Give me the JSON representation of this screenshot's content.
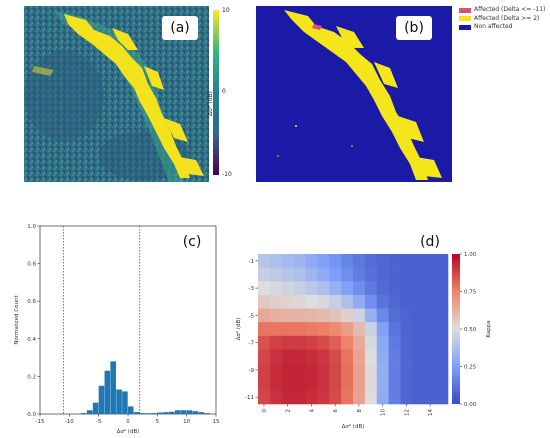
{
  "panels": {
    "a": {
      "tag": "(a)",
      "colorbar": {
        "max_label": "10",
        "mid_label": "0",
        "min_label": "-10",
        "label": "Δσ⁰ (dB)",
        "colors": [
          "#440154",
          "#31688e",
          "#26828e",
          "#35b779",
          "#fde725"
        ]
      }
    },
    "b": {
      "tag": "(b)",
      "legend": [
        {
          "label": "Affected (Delta <= -11)",
          "color": "#d9536f"
        },
        {
          "label": "Affected (Delta >= 2)",
          "color": "#f5e51b"
        },
        {
          "label": "Non affected",
          "color": "#1a1aa6"
        }
      ]
    },
    "c": {
      "tag": "(c)"
    },
    "d": {
      "tag": "(d)"
    }
  },
  "chart_data": [
    {
      "panel": "c",
      "type": "bar",
      "subtype": "histogram",
      "title": "",
      "xlabel": "Δσ⁰ (dB)",
      "ylabel": "Normalized Count",
      "xlim": [
        -15,
        15
      ],
      "ylim": [
        0,
        1.0
      ],
      "xticks": [
        -15,
        -10,
        -5,
        0,
        5,
        10,
        15
      ],
      "yticks": [
        0.0,
        0.2,
        0.4,
        0.6,
        0.8,
        1.0
      ],
      "ytick_labels": [
        "0.0",
        "0.2",
        "0.4",
        "0.6",
        "0.8",
        "1.0"
      ],
      "bar_color": "#1f77b4",
      "threshold_lines": [
        -11,
        2
      ],
      "bins": [
        {
          "x0": -8,
          "x1": -7,
          "value": 0.005
        },
        {
          "x0": -7,
          "x1": -6,
          "value": 0.02
        },
        {
          "x0": -6,
          "x1": -5,
          "value": 0.06
        },
        {
          "x0": -5,
          "x1": -4,
          "value": 0.15
        },
        {
          "x0": -4,
          "x1": -3,
          "value": 0.23
        },
        {
          "x0": -3,
          "x1": -2,
          "value": 0.28
        },
        {
          "x0": -2,
          "x1": -1,
          "value": 0.13
        },
        {
          "x0": -1,
          "x1": 0,
          "value": 0.12
        },
        {
          "x0": 0,
          "x1": 1,
          "value": 0.04
        },
        {
          "x0": 1,
          "x1": 2,
          "value": 0.01
        },
        {
          "x0": 2,
          "x1": 3,
          "value": 0.005
        },
        {
          "x0": 3,
          "x1": 4,
          "value": 0.004
        },
        {
          "x0": 4,
          "x1": 5,
          "value": 0.005
        },
        {
          "x0": 5,
          "x1": 6,
          "value": 0.008
        },
        {
          "x0": 6,
          "x1": 7,
          "value": 0.01
        },
        {
          "x0": 7,
          "x1": 8,
          "value": 0.012
        },
        {
          "x0": 8,
          "x1": 9,
          "value": 0.02
        },
        {
          "x0": 9,
          "x1": 10,
          "value": 0.02
        },
        {
          "x0": 10,
          "x1": 11,
          "value": 0.02
        },
        {
          "x0": 11,
          "x1": 12,
          "value": 0.015
        },
        {
          "x0": 12,
          "x1": 13,
          "value": 0.01
        },
        {
          "x0": 13,
          "x1": 14,
          "value": 0.005
        }
      ]
    },
    {
      "panel": "d",
      "type": "heatmap",
      "title": "",
      "xlabel": "Δσ⁰ (dB)",
      "ylabel": "Δσ⁰ (dB)",
      "colorbar_label": "Kappa",
      "colorbar_ticks": [
        "1.00",
        "0.75",
        "0.50",
        "0.25",
        "0.00"
      ],
      "vmin": 0.0,
      "vmax": 1.0,
      "x": [
        0,
        1,
        2,
        3,
        4,
        5,
        6,
        7,
        8,
        9,
        10,
        11,
        12,
        13,
        14,
        15
      ],
      "y": [
        -1,
        -2,
        -3,
        -4,
        -5,
        -6,
        -7,
        -8,
        -9,
        -10,
        -11
      ],
      "xtick_labels": [
        "0",
        "2",
        "4",
        "6",
        "8",
        "10",
        "12",
        "14"
      ],
      "ytick_labels": [
        "-1",
        "-3",
        "-5",
        "-7",
        "-9",
        "-11"
      ],
      "values": [
        [
          0.4,
          0.38,
          0.36,
          0.34,
          0.3,
          0.26,
          0.22,
          0.17,
          0.13,
          0.1,
          0.08,
          0.07,
          0.06,
          0.06,
          0.06,
          0.06
        ],
        [
          0.44,
          0.42,
          0.4,
          0.38,
          0.34,
          0.3,
          0.25,
          0.2,
          0.15,
          0.11,
          0.08,
          0.07,
          0.06,
          0.06,
          0.06,
          0.06
        ],
        [
          0.5,
          0.48,
          0.46,
          0.44,
          0.41,
          0.38,
          0.32,
          0.26,
          0.2,
          0.14,
          0.09,
          0.07,
          0.06,
          0.06,
          0.06,
          0.06
        ],
        [
          0.56,
          0.54,
          0.53,
          0.52,
          0.5,
          0.48,
          0.44,
          0.38,
          0.3,
          0.2,
          0.12,
          0.08,
          0.06,
          0.06,
          0.06,
          0.06
        ],
        [
          0.65,
          0.63,
          0.62,
          0.62,
          0.61,
          0.6,
          0.58,
          0.54,
          0.46,
          0.32,
          0.18,
          0.1,
          0.07,
          0.06,
          0.06,
          0.06
        ],
        [
          0.78,
          0.78,
          0.78,
          0.78,
          0.77,
          0.76,
          0.73,
          0.68,
          0.6,
          0.45,
          0.26,
          0.12,
          0.07,
          0.06,
          0.06,
          0.06
        ],
        [
          0.85,
          0.88,
          0.89,
          0.89,
          0.88,
          0.86,
          0.82,
          0.75,
          0.64,
          0.48,
          0.29,
          0.14,
          0.08,
          0.06,
          0.06,
          0.06
        ],
        [
          0.87,
          0.91,
          0.93,
          0.93,
          0.92,
          0.9,
          0.86,
          0.78,
          0.66,
          0.5,
          0.3,
          0.15,
          0.08,
          0.06,
          0.06,
          0.06
        ],
        [
          0.88,
          0.92,
          0.94,
          0.94,
          0.93,
          0.91,
          0.87,
          0.79,
          0.67,
          0.51,
          0.31,
          0.15,
          0.08,
          0.06,
          0.06,
          0.06
        ],
        [
          0.88,
          0.92,
          0.94,
          0.94,
          0.93,
          0.91,
          0.87,
          0.79,
          0.67,
          0.51,
          0.31,
          0.15,
          0.08,
          0.06,
          0.06,
          0.06
        ],
        [
          0.87,
          0.91,
          0.93,
          0.93,
          0.92,
          0.9,
          0.86,
          0.78,
          0.66,
          0.5,
          0.3,
          0.15,
          0.08,
          0.06,
          0.06,
          0.06
        ]
      ]
    }
  ]
}
